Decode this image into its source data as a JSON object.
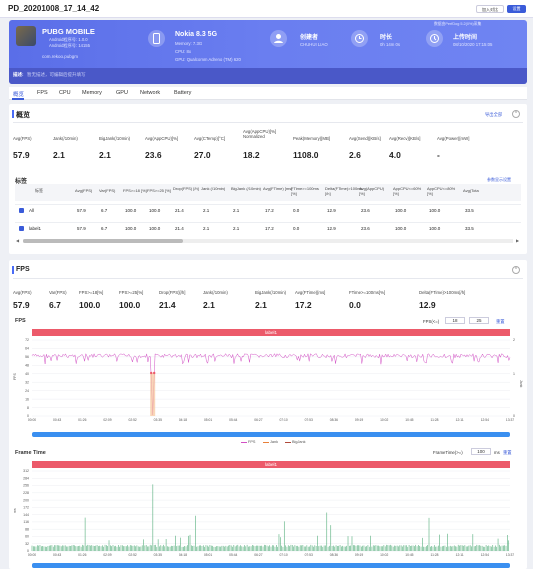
{
  "header": {
    "title": "PD_20201008_17_14_42",
    "btn_compare": "加入对比",
    "btn_settings": "设置"
  },
  "app": {
    "name": "PUBG MOBILE",
    "android_version": "Android程序号: 1.0.0",
    "android_build": "Android程序号: 14155",
    "package": "com.rekoo.pubgm",
    "notice": "数据由PerfDog 5.2(0%)采集"
  },
  "device": {
    "name": "Nokia 8.3 5G",
    "memory": "Memory: 7.3G",
    "cpu": "CPU: 8x",
    "gpu": "GPU: Qualcomm Adreno (TM) 620"
  },
  "creator": {
    "label": "创建者",
    "value": "CHUHUI LIAO"
  },
  "duration": {
    "label": "时长",
    "value": "0h 14m 0s"
  },
  "upload": {
    "label": "上传时间",
    "value": "08/10/2020 17:15:05"
  },
  "remark": {
    "label": "描述:",
    "placeholder": "暂无描述，可编辑后提升填写"
  },
  "tabs": [
    "概览",
    "FPS",
    "CPU",
    "Memory",
    "GPU",
    "Network",
    "Battery"
  ],
  "overview": {
    "title": "概览",
    "export": "导出全部",
    "metrics": [
      {
        "label": "Avg(FPS)",
        "value": "57.9"
      },
      {
        "label": "Jank(/10min)",
        "value": "2.1"
      },
      {
        "label": "BigJank(/10min)",
        "value": "2.1"
      },
      {
        "label": "Avg(AppCPU)[%]",
        "value": "23.6"
      },
      {
        "label": "Avg(CTemp)[°C]",
        "value": "27.0"
      },
      {
        "label": "Avg(AppCPU)[%] Normalized",
        "value": "18.2"
      },
      {
        "label": "Peak(Memory)[MB]",
        "value": "1108.0"
      },
      {
        "label": "Avg(Send)[KB/s]",
        "value": "2.6"
      },
      {
        "label": "Avg(Recv)[KB/s]",
        "value": "4.0"
      },
      {
        "label": "Avg(Power)[mW]",
        "value": "-"
      }
    ]
  },
  "labels_table": {
    "title": "标签",
    "link": "参数显示设置",
    "headers": [
      "标签",
      "Avg(FPS)",
      "Var(FPS)",
      "FPS>=18 [%]",
      "FPS>=25 [%]",
      "Drop(FPS) [/h]",
      "Jank (/10min)",
      "BigJank (/10min)",
      "Avg(FTime) [ms]",
      "FTime>=100ms [%]",
      "Delta(FTime)>100ms [/h]",
      "Avg(AppCPU) [%]",
      "AppCPU<=60% [%]",
      "AppCPU<=80% [%]",
      "Avg(Tota"
    ],
    "rows": [
      {
        "name": "All",
        "cells": [
          "57.9",
          "6.7",
          "100.0",
          "100.0",
          "21.4",
          "2.1",
          "2.1",
          "17.2",
          "0.0",
          "12.9",
          "23.6",
          "100.0",
          "100.0",
          "33.5"
        ]
      },
      {
        "name": "label1",
        "cells": [
          "57.9",
          "6.7",
          "100.0",
          "100.0",
          "21.4",
          "2.1",
          "2.1",
          "17.2",
          "0.0",
          "12.9",
          "23.6",
          "100.0",
          "100.0",
          "33.5"
        ]
      }
    ]
  },
  "fps_section": {
    "title": "FPS",
    "metrics": [
      {
        "label": "Avg(FPS)",
        "value": "57.9"
      },
      {
        "label": "Var(FPS)",
        "value": "6.7"
      },
      {
        "label": "FPS>=18[%]",
        "value": "100.0"
      },
      {
        "label": "FPS>=25[%]",
        "value": "100.0"
      },
      {
        "label": "Drop(FPS)[/h]",
        "value": "21.4"
      },
      {
        "label": "Jank(/10min)",
        "value": "2.1"
      },
      {
        "label": "BigJank(/10min)",
        "value": "2.1"
      },
      {
        "label": "Avg(FTime)[ms]",
        "value": "17.2"
      },
      {
        "label": "FTime>=100ms[%]",
        "value": "0.0"
      },
      {
        "label": "Delta(FTime)>100ms[/h]",
        "value": "12.9"
      }
    ],
    "fps_chart_title": "FPS",
    "fps_filter_label": "FPS(<=)",
    "fps_filter_a": "18",
    "fps_filter_b": "25",
    "reset": "重置",
    "label_bar": "label1",
    "legend": [
      "FPS",
      "Jank",
      "BigJank"
    ],
    "ft_title": "Frame Time",
    "ft_filter_label": "FrameTime(>=)",
    "ft_value": "100",
    "ft_unit": "ms",
    "ft_reset": "重置"
  },
  "fps_axis": {
    "y_left": [
      "72",
      "64",
      "56",
      "48",
      "40",
      "32",
      "24",
      "16",
      "8",
      "0"
    ],
    "y_right": [
      "2",
      "",
      "",
      "",
      "1",
      "",
      "",
      "",
      "",
      "0"
    ],
    "y_left_title": "FPS",
    "y_right_title": "Jank",
    "x": [
      "00:00",
      "00:43",
      "01:26",
      "02:09",
      "02:52",
      "03:35",
      "04:18",
      "05:01",
      "05:44",
      "06:27",
      "07:10",
      "07:53",
      "08:36",
      "09:19",
      "10:02",
      "10:45",
      "11:28",
      "12:11",
      "12:54",
      "13:37"
    ]
  },
  "ft_axis": {
    "y": [
      "312",
      "284",
      "256",
      "228",
      "200",
      "172",
      "144",
      "116",
      "88",
      "60",
      "32",
      "0"
    ],
    "y_title": "ms",
    "x": [
      "00:00",
      "00:43",
      "01:26",
      "02:09",
      "02:52",
      "03:35",
      "04:18",
      "05:01",
      "05:44",
      "06:27",
      "07:10",
      "07:53",
      "08:36",
      "09:19",
      "10:02",
      "10:45",
      "11:28",
      "12:11",
      "12:54",
      "13:37"
    ]
  },
  "colors": {
    "accent": "#4a6cf7",
    "fps_line": "#d24fc4",
    "jank": "#ec5a6a",
    "ft_bar": "#2a9a5a",
    "label_bar": "#ec5a6a"
  }
}
